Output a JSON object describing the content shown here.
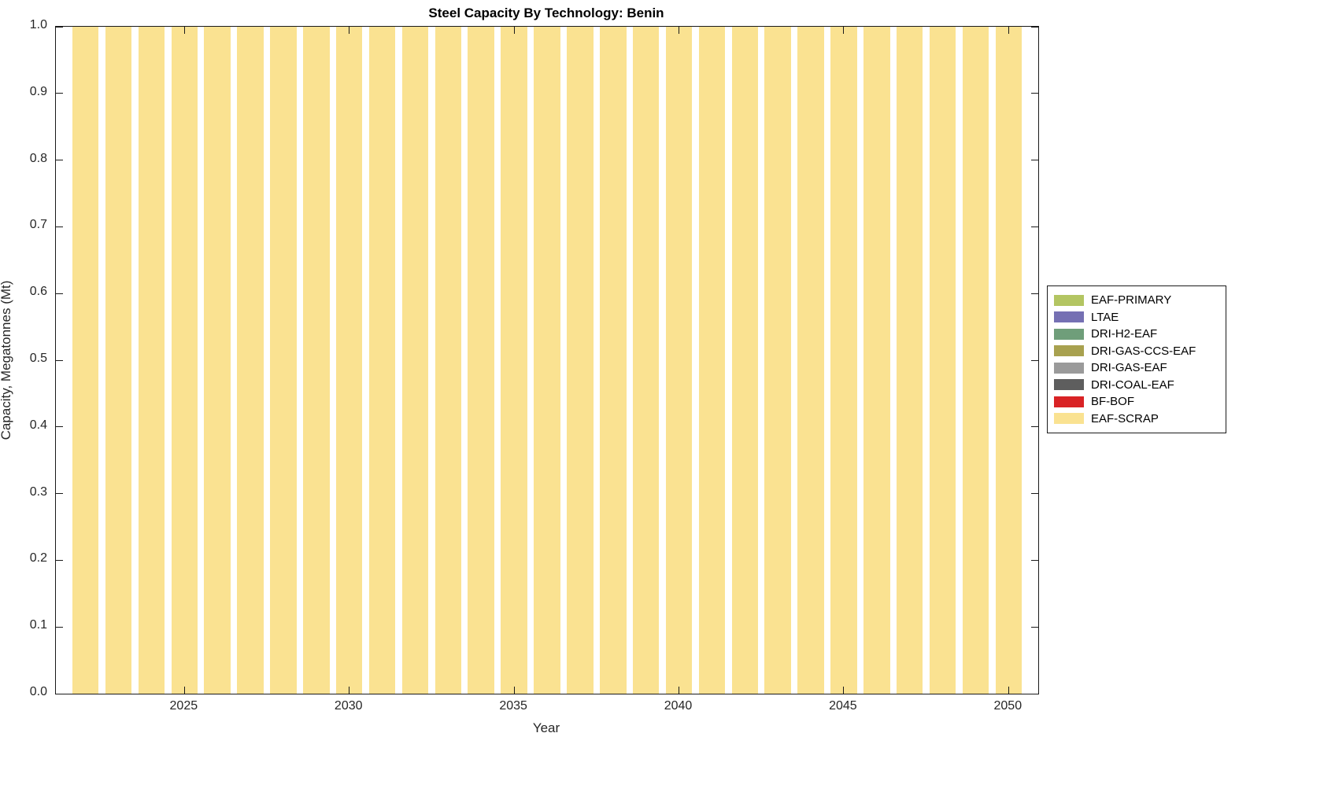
{
  "chart_data": {
    "type": "bar",
    "stacked": true,
    "title": "Steel Capacity By Technology: Benin",
    "xlabel": "Year",
    "ylabel": "Capacity, Megatonnes (Mt)",
    "x": [
      2022,
      2023,
      2024,
      2025,
      2026,
      2027,
      2028,
      2029,
      2030,
      2031,
      2032,
      2033,
      2034,
      2035,
      2036,
      2037,
      2038,
      2039,
      2040,
      2041,
      2042,
      2043,
      2044,
      2045,
      2046,
      2047,
      2048,
      2049,
      2050
    ],
    "series": [
      {
        "name": "EAF-SCRAP",
        "color": "#FAE291",
        "values": [
          1.0,
          1.0,
          1.0,
          1.0,
          1.0,
          1.0,
          1.0,
          1.0,
          1.0,
          1.0,
          1.0,
          1.0,
          1.0,
          1.0,
          1.0,
          1.0,
          1.0,
          1.0,
          1.0,
          1.0,
          1.0,
          1.0,
          1.0,
          1.0,
          1.0,
          1.0,
          1.0,
          1.0,
          1.0
        ]
      }
    ],
    "legend": [
      {
        "label": "EAF-PRIMARY",
        "color": "#B3C562"
      },
      {
        "label": "LTAE",
        "color": "#7570B3"
      },
      {
        "label": "DRI-H2-EAF",
        "color": "#6F9E7A"
      },
      {
        "label": "DRI-GAS-CCS-EAF",
        "color": "#A8A14F"
      },
      {
        "label": "DRI-GAS-EAF",
        "color": "#9A9A9A"
      },
      {
        "label": "DRI-COAL-EAF",
        "color": "#5E5E5E"
      },
      {
        "label": "BF-BOF",
        "color": "#D92325"
      },
      {
        "label": "EAF-SCRAP",
        "color": "#FAE291"
      }
    ],
    "ylim": [
      0.0,
      1.0
    ],
    "yticks": [
      0.0,
      0.1,
      0.2,
      0.3,
      0.4,
      0.5,
      0.6,
      0.7,
      0.8,
      0.9,
      1.0
    ],
    "xticks": [
      2025,
      2030,
      2035,
      2040,
      2045,
      2050
    ],
    "x_range": [
      2021.1,
      2050.9
    ],
    "bar_width_years": 0.8,
    "grid": false,
    "legend_position": "outside-right",
    "axis_color": "#1a1a1a"
  }
}
